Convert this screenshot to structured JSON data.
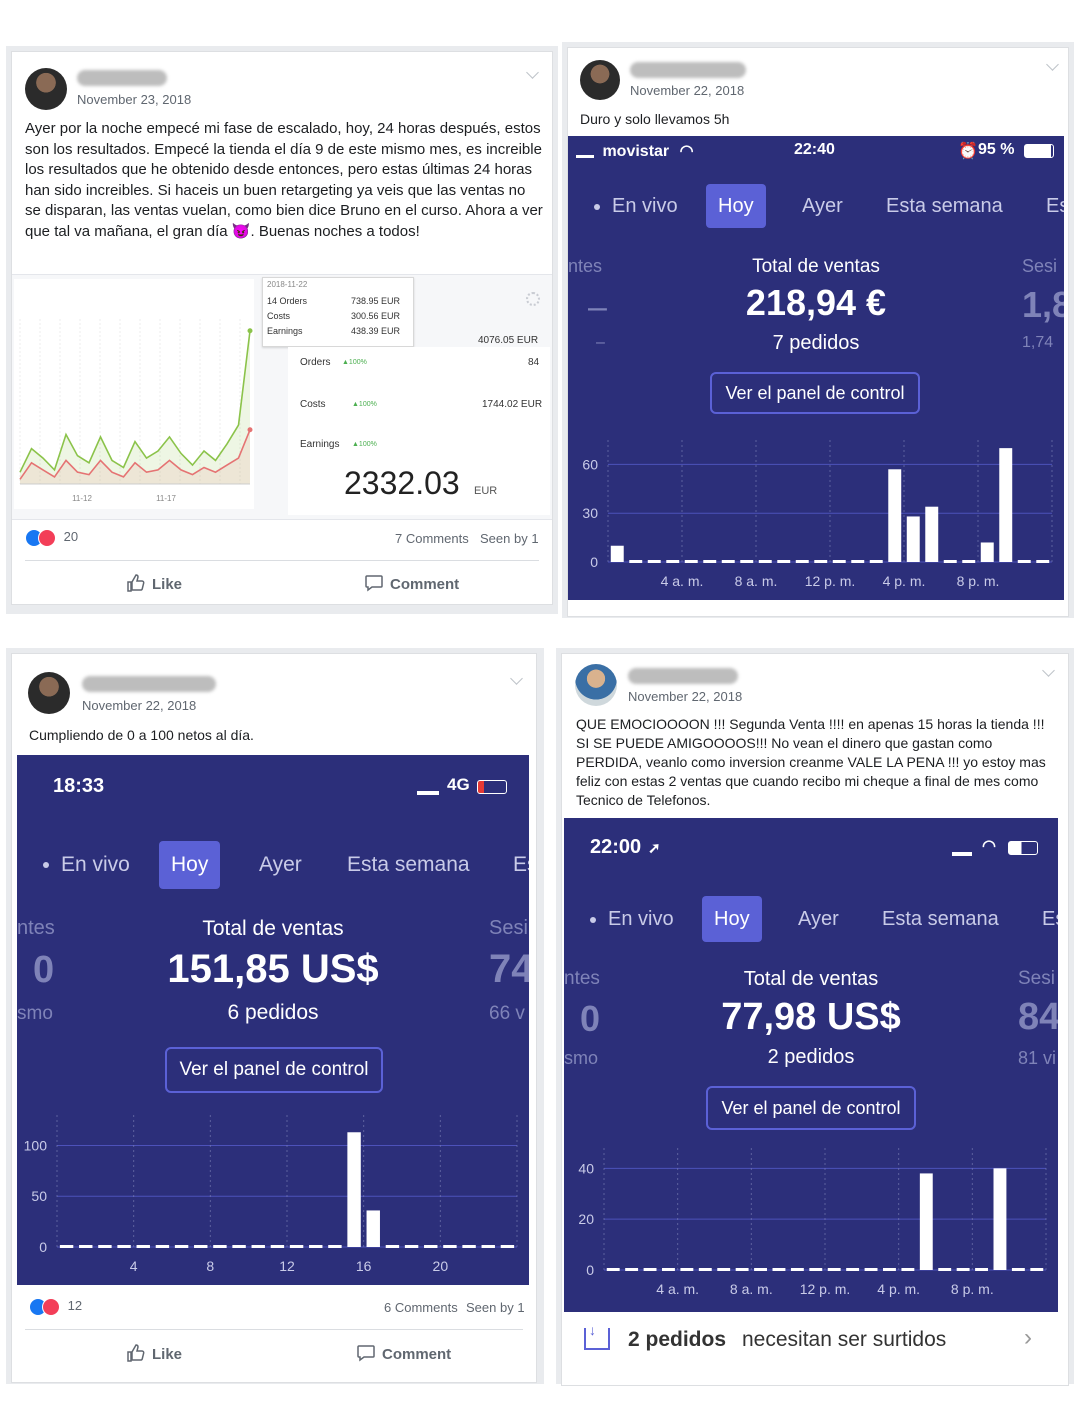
{
  "posts": [
    {
      "date": "November 23, 2018",
      "text": "Ayer por la noche empecé mi fase de escalado, hoy, 24 horas después, estos son los resultados. Empecé la tienda el día 9 de este mismo mes, es increible los resultados que he obtenido desde entonces, pero estas últimas 24 horas han sido increibles. Si haceis un buen retargeting ya veis que las ventas no se disparan, las ventas vuelan, como bien dice Bruno en el curso. Ahora a ver que tal va mañana, el gran día 😈. Buenas noches a todos!",
      "reaction_count": "20",
      "comments": "7 Comments",
      "seen": "Seen by 1",
      "like_label": "Like",
      "comment_label": "Comment",
      "dashboard": {
        "tooltip_date": "2018-11-22",
        "tooltip_orders": "14 Orders",
        "tooltip_orders_value": "738.95 EUR",
        "tooltip_costs": "Costs",
        "tooltip_costs_value": "300.56 EUR",
        "tooltip_earnings": "Earnings",
        "tooltip_earnings_value": "438.39 EUR",
        "total_value": "4076.05 EUR",
        "orders_label": "Orders",
        "orders_pct": "▲100%",
        "orders_value": "84",
        "costs_label": "Costs",
        "costs_pct": "▲100%",
        "costs_value": "1744.02 EUR",
        "earnings_label": "Earnings",
        "earnings_pct": "▲100%",
        "earnings_value": "2332.03",
        "earnings_currency": "EUR",
        "x_ticks": [
          "11-12",
          "11-17"
        ]
      }
    },
    {
      "date": "November 22, 2018",
      "text": "Duro y solo llevamos 5h",
      "shop": {
        "carrier": "movistar",
        "time": "22:40",
        "battery": "95 %",
        "tabs": [
          "En vivo",
          "Hoy",
          "Ayer",
          "Esta semana",
          "Es"
        ],
        "left_label": "ntes",
        "left_value": "–",
        "left_sub": "–",
        "right_label": "Sesi",
        "right_value": "1,8",
        "right_sub": "1,74",
        "total_label": "Total de ventas",
        "total_value": "218,94 €",
        "orders": "7 pedidos",
        "button": "Ver el panel de control"
      }
    },
    {
      "date": "November 22, 2018",
      "text": "Cumpliendo de 0 a 100 netos al día.",
      "reaction_count": "12",
      "comments": "6 Comments",
      "seen": "Seen by 1",
      "like_label": "Like",
      "comment_label": "Comment",
      "shop": {
        "time": "18:33",
        "network": "4G",
        "tabs": [
          "En vivo",
          "Hoy",
          "Ayer",
          "Esta semana",
          "Es"
        ],
        "left_label": "ntes",
        "left_value": "0",
        "left_sub": "smo",
        "right_label": "Sesi",
        "right_value": "74",
        "right_sub": "66 v",
        "total_label": "Total de ventas",
        "total_value": "151,85 US$",
        "orders": "6 pedidos",
        "button": "Ver el panel de control"
      }
    },
    {
      "date": "November 22, 2018",
      "text": "QUE EMOCIOOOON !!! Segunda Venta !!!! en apenas 15 horas la tienda !!! SI SE PUEDE AMIGOOOOS!!! No vean el dinero que gastan como PERDIDA, veanlo como inversion creanme VALE LA PENA !!! yo estoy mas feliz con estas 2 ventas que cuando recibo mi cheque a final de mes como Tecnico de Telefonos.",
      "shop": {
        "time": "22:00",
        "tabs": [
          "En vivo",
          "Hoy",
          "Ayer",
          "Esta semana",
          "Es"
        ],
        "left_label": "ntes",
        "left_value": "0",
        "left_sub": "smo",
        "right_label": "Sesi",
        "right_value": "84",
        "right_sub": "81 vi",
        "total_label": "Total de ventas",
        "total_value": "77,98 US$",
        "orders": "2 pedidos",
        "button": "Ver el panel de control",
        "banner_bold": "2 pedidos",
        "banner_text": "necesitan ser surtidos"
      }
    }
  ],
  "chart_data": [
    {
      "type": "line",
      "x_ticks": [
        "11-12",
        "11-17"
      ],
      "series": [
        {
          "color": "#8bc34a",
          "values": [
            10,
            30,
            22,
            12,
            42,
            24,
            18,
            40,
            20,
            14,
            36,
            22,
            28,
            40,
            26,
            16,
            28,
            20,
            34,
            50,
            130
          ]
        },
        {
          "color": "#e57373",
          "values": [
            4,
            18,
            12,
            6,
            20,
            10,
            8,
            20,
            10,
            6,
            18,
            10,
            12,
            20,
            12,
            8,
            14,
            10,
            16,
            22,
            46
          ]
        }
      ]
    },
    {
      "type": "bar",
      "x_ticks": [
        "4 a. m.",
        "8 a. m.",
        "12 p. m.",
        "4 p. m.",
        "8 p. m."
      ],
      "y_ticks": [
        0,
        30,
        60
      ],
      "ylim": [
        0,
        75
      ],
      "values": [
        10,
        0,
        0,
        0,
        0,
        0,
        0,
        0,
        0,
        0,
        0,
        0,
        0,
        0,
        0,
        57,
        28,
        34,
        0,
        0,
        12,
        70,
        0,
        0
      ]
    },
    {
      "type": "bar",
      "x_ticks": [
        "4",
        "8",
        "12",
        "16",
        "20"
      ],
      "y_ticks": [
        0,
        50,
        100
      ],
      "ylim": [
        0,
        130
      ],
      "values": [
        0,
        0,
        0,
        0,
        0,
        0,
        0,
        0,
        0,
        0,
        0,
        0,
        0,
        0,
        0,
        113,
        36,
        0,
        0,
        0,
        0,
        0,
        0,
        0
      ]
    },
    {
      "type": "bar",
      "x_ticks": [
        "4 a. m.",
        "8 a. m.",
        "12 p. m.",
        "4 p. m.",
        "8 p. m."
      ],
      "y_ticks": [
        0,
        20,
        40
      ],
      "ylim": [
        0,
        48
      ],
      "values": [
        0,
        0,
        0,
        0,
        0,
        0,
        0,
        0,
        0,
        0,
        0,
        0,
        0,
        0,
        0,
        0,
        0,
        38,
        0,
        0,
        0,
        40,
        0,
        0
      ]
    }
  ]
}
